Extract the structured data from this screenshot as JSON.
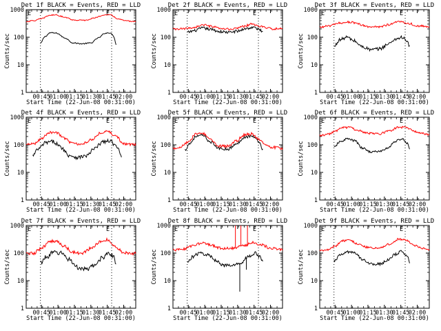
{
  "figure": {
    "x_tick_labels": [
      "00:45",
      "01:00",
      "01:15",
      "01:30",
      "01:45",
      "02:00"
    ],
    "y_tick_labels": [
      "1",
      "10",
      "100",
      "1000"
    ],
    "ylabel": "Counts/sec",
    "xlabel": "Start Time (22-Jun-08 00:31:00)",
    "corner_marker_left": "E",
    "corner_marker_right": "E",
    "colors": {
      "events": "#000000",
      "lld": "#ff0000",
      "background": "#ffffff",
      "axis": "#000000"
    }
  },
  "chart_data": [
    {
      "type": "line",
      "title": "Det 1f BLACK = Events, RED = LLD",
      "ylabel": "Counts/sec",
      "xlabel": "Start Time (22-Jun-08 00:31:00)",
      "xlim": [
        "00:31",
        "02:11"
      ],
      "ylim": [
        1,
        1000
      ],
      "yscale": "log",
      "vlines": [
        "00:44",
        "01:49"
      ],
      "series": [
        {
          "name": "Events",
          "color": "#000000",
          "start": "00:44",
          "end": "01:53",
          "x": [
            "00:44",
            "00:48",
            "00:53",
            "00:59",
            "01:06",
            "01:14",
            "01:22",
            "01:30",
            "01:37",
            "01:43",
            "01:48",
            "01:51",
            "01:53"
          ],
          "y": [
            60,
            105,
            145,
            140,
            95,
            62,
            58,
            62,
            95,
            140,
            145,
            105,
            55
          ],
          "noise": 0.02
        },
        {
          "name": "LLD",
          "color": "#ff0000",
          "start": "00:31",
          "end": "02:11",
          "x": [
            "00:31",
            "00:38",
            "00:45",
            "00:52",
            "00:58",
            "01:05",
            "01:15",
            "01:25",
            "01:35",
            "01:42",
            "01:48",
            "01:55",
            "02:02",
            "02:11"
          ],
          "y": [
            370,
            400,
            470,
            620,
            650,
            550,
            420,
            410,
            520,
            650,
            640,
            460,
            390,
            370
          ],
          "noise": 0.02
        }
      ]
    },
    {
      "type": "line",
      "title": "Det 2f BLACK = Events, RED = LLD",
      "ylabel": "Counts/sec",
      "xlabel": "Start Time (22-Jun-08 00:31:00)",
      "xlim": [
        "00:31",
        "02:11"
      ],
      "ylim": [
        1,
        1000
      ],
      "yscale": "log",
      "vlines": [
        "00:44",
        "01:49"
      ],
      "series": [
        {
          "name": "Events",
          "color": "#000000",
          "start": "00:44",
          "end": "01:53",
          "x": [
            "00:44",
            "00:50",
            "00:58",
            "01:06",
            "01:14",
            "01:22",
            "01:30",
            "01:38",
            "01:45",
            "01:50",
            "01:53"
          ],
          "y": [
            150,
            170,
            215,
            190,
            160,
            150,
            165,
            210,
            225,
            190,
            160
          ],
          "noise": 0.05
        },
        {
          "name": "LLD",
          "color": "#ff0000",
          "start": "00:31",
          "end": "02:11",
          "x": [
            "00:31",
            "00:40",
            "00:50",
            "00:58",
            "01:06",
            "01:15",
            "01:25",
            "01:35",
            "01:43",
            "01:50",
            "02:00",
            "02:11"
          ],
          "y": [
            195,
            200,
            225,
            280,
            245,
            200,
            195,
            245,
            300,
            250,
            205,
            200
          ],
          "noise": 0.04
        }
      ]
    },
    {
      "type": "line",
      "title": "Det 3f BLACK = Events, RED = LLD",
      "ylabel": "Counts/sec",
      "xlabel": "Start Time (22-Jun-08 00:31:00)",
      "xlim": [
        "00:31",
        "02:11"
      ],
      "ylim": [
        1,
        1000
      ],
      "yscale": "log",
      "vlines": [
        "00:44",
        "01:49"
      ],
      "series": [
        {
          "name": "Events",
          "color": "#000000",
          "start": "00:44",
          "end": "01:53",
          "x": [
            "00:44",
            "00:49",
            "00:56",
            "01:02",
            "01:10",
            "01:18",
            "01:26",
            "01:33",
            "01:40",
            "01:46",
            "01:51",
            "01:53"
          ],
          "y": [
            45,
            80,
            100,
            75,
            45,
            35,
            38,
            55,
            85,
            100,
            70,
            45
          ],
          "noise": 0.06
        },
        {
          "name": "LLD",
          "color": "#ff0000",
          "start": "00:31",
          "end": "02:11",
          "x": [
            "00:31",
            "00:40",
            "00:50",
            "00:58",
            "01:06",
            "01:15",
            "01:25",
            "01:35",
            "01:44",
            "01:52",
            "02:00",
            "02:11"
          ],
          "y": [
            230,
            260,
            330,
            360,
            300,
            240,
            240,
            290,
            380,
            320,
            260,
            240
          ],
          "noise": 0.04
        }
      ]
    },
    {
      "type": "line",
      "title": "Det 4f BLACK = Events, RED = LLD",
      "ylabel": "Counts/sec",
      "xlabel": "Start Time (22-Jun-08 00:31:00)",
      "xlim": [
        "00:31",
        "02:11"
      ],
      "ylim": [
        1,
        1000
      ],
      "yscale": "log",
      "vlines": [
        "00:44",
        "01:49"
      ],
      "series": [
        {
          "name": "Events",
          "color": "#000000",
          "start": "00:37",
          "end": "01:58",
          "x": [
            "00:37",
            "00:42",
            "00:49",
            "00:56",
            "01:03",
            "01:10",
            "01:18",
            "01:26",
            "01:34",
            "01:41",
            "01:48",
            "01:54",
            "01:58"
          ],
          "y": [
            40,
            70,
            120,
            130,
            80,
            42,
            35,
            40,
            75,
            130,
            135,
            80,
            40
          ],
          "noise": 0.07
        },
        {
          "name": "LLD",
          "color": "#ff0000",
          "start": "00:31",
          "end": "02:11",
          "x": [
            "00:31",
            "00:38",
            "00:45",
            "00:52",
            "00:58",
            "01:05",
            "01:14",
            "01:22",
            "01:30",
            "01:38",
            "01:46",
            "01:53",
            "02:00",
            "02:11"
          ],
          "y": [
            100,
            110,
            170,
            280,
            290,
            180,
            110,
            105,
            150,
            260,
            310,
            200,
            110,
            100
          ],
          "noise": 0.05
        }
      ]
    },
    {
      "type": "line",
      "title": "Det 5f BLACK = Events, RED = LLD",
      "ylabel": "Counts/sec",
      "xlabel": "Start Time (22-Jun-08 00:31:00)",
      "xlim": [
        "00:31",
        "02:11"
      ],
      "ylim": [
        1,
        1000
      ],
      "yscale": "log",
      "vlines": [
        "00:44",
        "01:49"
      ],
      "series": [
        {
          "name": "Events",
          "color": "#000000",
          "start": "00:42",
          "end": "01:53",
          "x": [
            "00:42",
            "00:46",
            "00:52",
            "00:58",
            "01:05",
            "01:13",
            "01:21",
            "01:29",
            "01:36",
            "01:43",
            "01:49",
            "01:53"
          ],
          "y": [
            65,
            110,
            200,
            220,
            130,
            75,
            70,
            105,
            190,
            210,
            140,
            70
          ],
          "noise": 0.05
        },
        {
          "name": "LLD",
          "color": "#ff0000",
          "start": "00:31",
          "end": "02:11",
          "x": [
            "00:31",
            "00:38",
            "00:45",
            "00:52",
            "00:58",
            "01:05",
            "01:13",
            "01:21",
            "01:29",
            "01:36",
            "01:43",
            "01:50",
            "01:58",
            "02:11"
          ],
          "y": [
            75,
            85,
            130,
            240,
            260,
            160,
            90,
            90,
            140,
            230,
            250,
            150,
            85,
            75
          ],
          "noise": 0.05
        }
      ]
    },
    {
      "type": "line",
      "title": "Det 6f BLACK = Events, RED = LLD",
      "ylabel": "Counts/sec",
      "xlabel": "Start Time (22-Jun-08 00:31:00)",
      "xlim": [
        "00:31",
        "02:11"
      ],
      "ylim": [
        1,
        1000
      ],
      "yscale": "log",
      "vlines": [
        "00:44",
        "01:49"
      ],
      "series": [
        {
          "name": "Events",
          "color": "#000000",
          "start": "00:44",
          "end": "01:53",
          "x": [
            "00:44",
            "00:49",
            "00:56",
            "01:03",
            "01:10",
            "01:18",
            "01:26",
            "01:33",
            "01:40",
            "01:46",
            "01:51",
            "01:53"
          ],
          "y": [
            80,
            125,
            165,
            140,
            75,
            55,
            58,
            75,
            135,
            165,
            110,
            75
          ],
          "noise": 0.04
        },
        {
          "name": "LLD",
          "color": "#ff0000",
          "start": "00:31",
          "end": "02:11",
          "x": [
            "00:31",
            "00:38",
            "00:45",
            "00:52",
            "00:58",
            "01:05",
            "01:15",
            "01:25",
            "01:35",
            "01:43",
            "01:50",
            "01:58",
            "02:11"
          ],
          "y": [
            220,
            240,
            310,
            420,
            430,
            340,
            260,
            250,
            320,
            440,
            430,
            300,
            240
          ],
          "noise": 0.04
        }
      ]
    },
    {
      "type": "line",
      "title": "Det 7f BLACK = Events, RED = LLD",
      "ylabel": "Counts/sec",
      "xlabel": "Start Time (22-Jun-08 00:31:00)",
      "xlim": [
        "00:31",
        "02:11"
      ],
      "ylim": [
        1,
        1000
      ],
      "yscale": "log",
      "vlines": [
        "00:44",
        "01:49"
      ],
      "series": [
        {
          "name": "Events",
          "color": "#000000",
          "start": "00:44",
          "end": "01:53",
          "x": [
            "00:44",
            "00:49",
            "00:56",
            "01:03",
            "01:10",
            "01:18",
            "01:26",
            "01:33",
            "01:40",
            "01:46",
            "01:51",
            "01:53"
          ],
          "y": [
            45,
            70,
            105,
            100,
            60,
            30,
            25,
            35,
            65,
            105,
            75,
            40
          ],
          "noise": 0.08
        },
        {
          "name": "LLD",
          "color": "#ff0000",
          "start": "00:31",
          "end": "02:11",
          "x": [
            "00:31",
            "00:38",
            "00:45",
            "00:52",
            "00:58",
            "01:05",
            "01:14",
            "01:22",
            "01:30",
            "01:38",
            "01:45",
            "01:52",
            "02:00",
            "02:11"
          ],
          "y": [
            90,
            100,
            150,
            250,
            280,
            180,
            105,
            100,
            145,
            250,
            300,
            180,
            105,
            95
          ],
          "noise": 0.06
        }
      ]
    },
    {
      "type": "line",
      "title": "Det 8f BLACK = Events, RED = LLD",
      "ylabel": "Counts/sec",
      "xlabel": "Start Time (22-Jun-08 00:31:00)",
      "xlim": [
        "00:31",
        "02:11"
      ],
      "ylim": [
        1,
        1000
      ],
      "yscale": "log",
      "vlines": [
        "00:44",
        "01:49"
      ],
      "spikes": [
        {
          "series": "LLD",
          "x": "01:28",
          "y": 1000
        },
        {
          "series": "LLD",
          "x": "01:33",
          "y": 1000
        },
        {
          "series": "LLD",
          "x": "01:39",
          "y": 1000
        },
        {
          "series": "Events",
          "x": "01:32",
          "y": 4
        },
        {
          "series": "Events",
          "x": "01:38",
          "y": 25
        }
      ],
      "series": [
        {
          "name": "Events",
          "color": "#000000",
          "start": "00:44",
          "end": "01:53",
          "x": [
            "00:44",
            "00:49",
            "00:56",
            "01:03",
            "01:10",
            "01:18",
            "01:26",
            "01:33",
            "01:40",
            "01:46",
            "01:51",
            "01:53"
          ],
          "y": [
            45,
            75,
            100,
            85,
            55,
            35,
            35,
            45,
            75,
            100,
            70,
            45
          ],
          "noise": 0.06
        },
        {
          "name": "LLD",
          "color": "#ff0000",
          "start": "00:31",
          "end": "02:11",
          "x": [
            "00:31",
            "00:40",
            "00:50",
            "00:58",
            "01:06",
            "01:15",
            "01:25",
            "01:35",
            "01:44",
            "01:52",
            "02:00",
            "02:11"
          ],
          "y": [
            130,
            140,
            190,
            230,
            190,
            150,
            150,
            180,
            240,
            200,
            150,
            135
          ],
          "noise": 0.05
        }
      ]
    },
    {
      "type": "line",
      "title": "Det 9f BLACK = Events, RED = LLD",
      "ylabel": "Counts/sec",
      "xlabel": "Start Time (22-Jun-08 00:31:00)",
      "xlim": [
        "00:31",
        "02:11"
      ],
      "ylim": [
        1,
        1000
      ],
      "yscale": "log",
      "vlines": [
        "00:44",
        "01:49"
      ],
      "series": [
        {
          "name": "Events",
          "color": "#000000",
          "start": "00:44",
          "end": "01:53",
          "x": [
            "00:44",
            "00:49",
            "00:56",
            "01:03",
            "01:10",
            "01:18",
            "01:26",
            "01:33",
            "01:40",
            "01:46",
            "01:51",
            "01:53"
          ],
          "y": [
            50,
            80,
            110,
            100,
            60,
            40,
            40,
            55,
            90,
            115,
            80,
            45
          ],
          "noise": 0.05
        },
        {
          "name": "LLD",
          "color": "#ff0000",
          "start": "00:31",
          "end": "02:11",
          "x": [
            "00:31",
            "00:38",
            "00:45",
            "00:52",
            "00:58",
            "01:05",
            "01:15",
            "01:25",
            "01:35",
            "01:43",
            "01:50",
            "01:58",
            "02:11"
          ],
          "y": [
            120,
            130,
            180,
            280,
            300,
            220,
            160,
            150,
            210,
            320,
            290,
            180,
            130
          ],
          "noise": 0.04
        }
      ]
    }
  ]
}
